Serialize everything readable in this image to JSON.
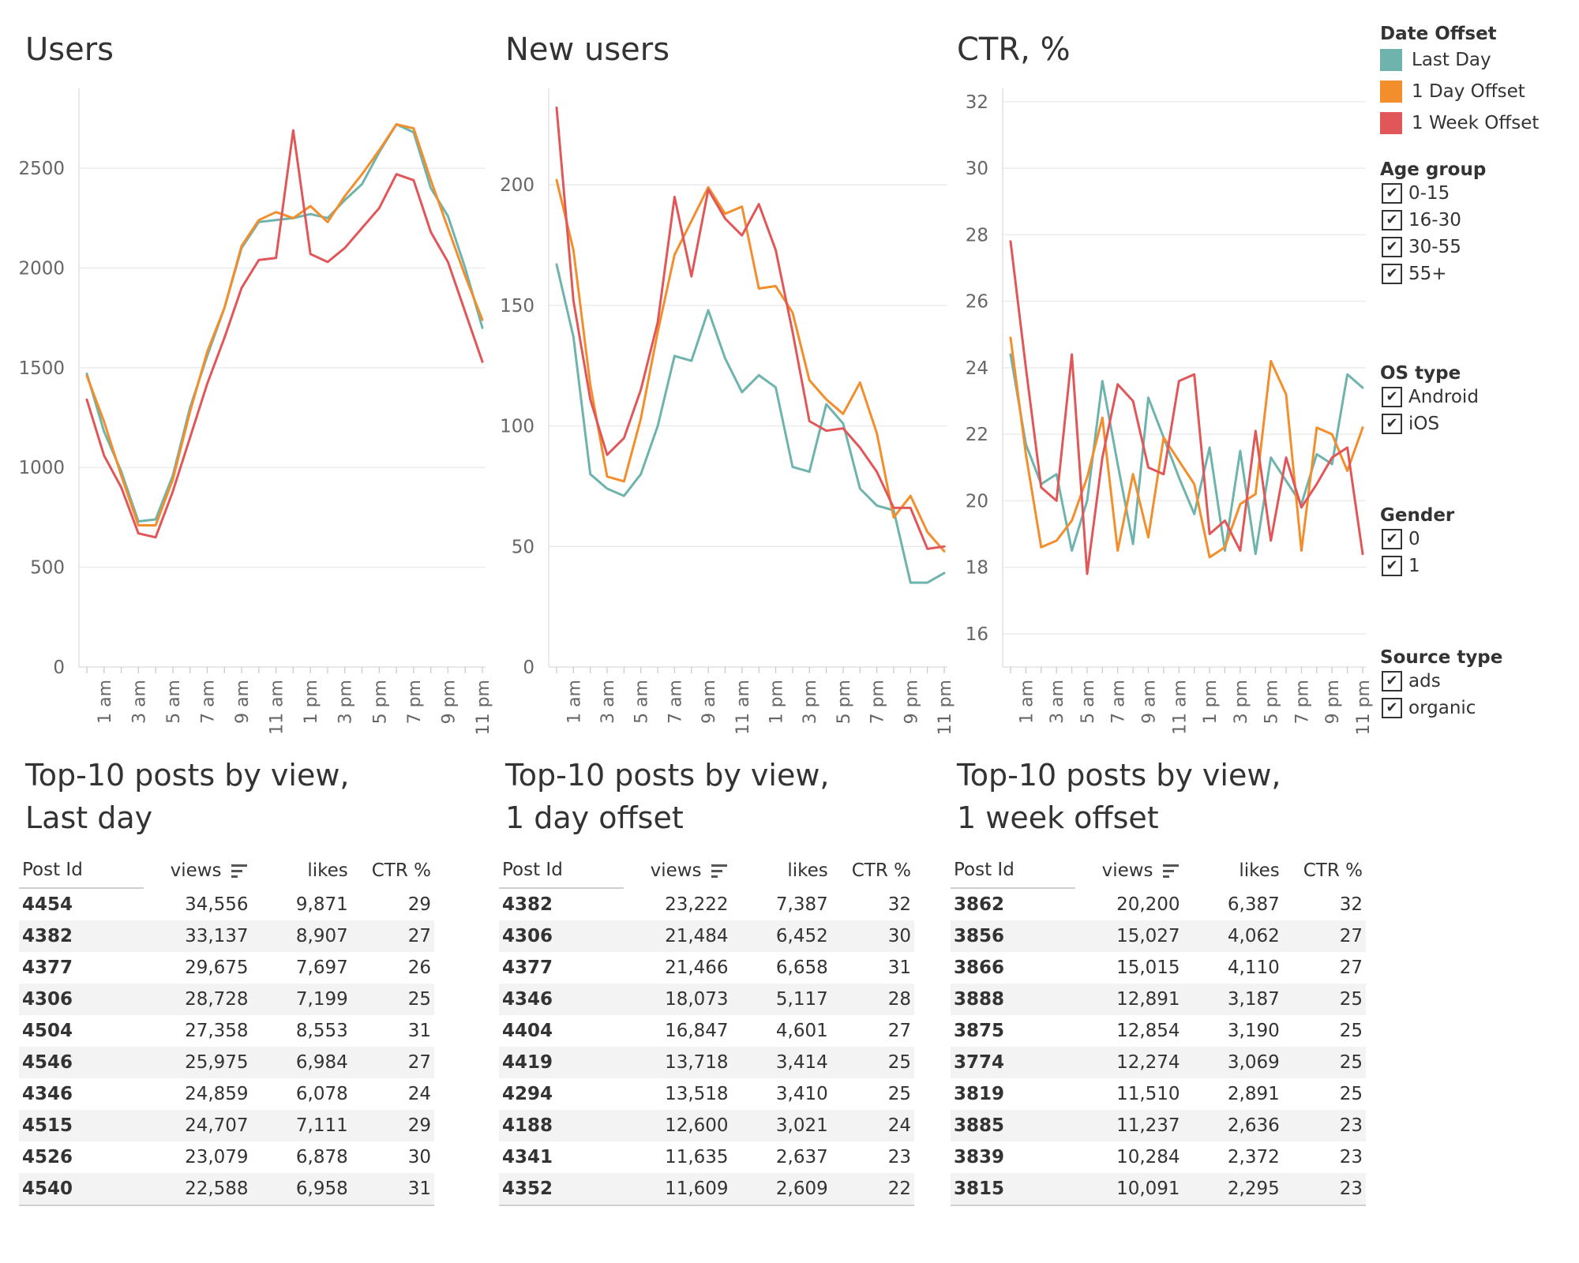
{
  "colors": {
    "last_day": "#6fb3ad",
    "one_day_offset": "#f28e2b",
    "one_week_offset": "#e15759"
  },
  "x_tick_labels": [
    "1 am",
    "3 am",
    "5 am",
    "7 am",
    "9 am",
    "11 am",
    "1 pm",
    "3 pm",
    "5 pm",
    "7 pm",
    "9 pm",
    "11 pm"
  ],
  "chart_data": [
    {
      "type": "line",
      "title": "Users",
      "xlabel": "",
      "ylabel": "",
      "x": [
        "12 am",
        "1 am",
        "2 am",
        "3 am",
        "4 am",
        "5 am",
        "6 am",
        "7 am",
        "8 am",
        "9 am",
        "10 am",
        "11 am",
        "12 pm",
        "1 pm",
        "2 pm",
        "3 pm",
        "4 pm",
        "5 pm",
        "6 pm",
        "7 pm",
        "8 pm",
        "9 pm",
        "10 pm",
        "11 pm"
      ],
      "x_tick_labels": [
        "1 am",
        "3 am",
        "5 am",
        "7 am",
        "9 am",
        "11 am",
        "1 pm",
        "3 pm",
        "5 pm",
        "7 pm",
        "9 pm",
        "11 pm"
      ],
      "ylim": [
        0,
        2900
      ],
      "y_ticks": [
        0,
        500,
        1000,
        1500,
        2000,
        2500
      ],
      "grid": true,
      "series": [
        {
          "name": "Last Day",
          "color": "#6fb3ad",
          "values": [
            1470,
            1180,
            980,
            730,
            740,
            960,
            1300,
            1560,
            1800,
            2100,
            2230,
            2240,
            2250,
            2270,
            2250,
            2340,
            2420,
            2580,
            2720,
            2680,
            2400,
            2260,
            2000,
            1700
          ]
        },
        {
          "name": "1 Day Offset",
          "color": "#f28e2b",
          "values": [
            1460,
            1230,
            960,
            710,
            710,
            940,
            1280,
            1580,
            1800,
            2110,
            2240,
            2280,
            2250,
            2310,
            2230,
            2360,
            2470,
            2590,
            2720,
            2700,
            2440,
            2200,
            1960,
            1740
          ]
        },
        {
          "name": "1 Week Offset",
          "color": "#e15759",
          "values": [
            1340,
            1060,
            900,
            670,
            650,
            880,
            1150,
            1420,
            1650,
            1900,
            2040,
            2050,
            2690,
            2070,
            2030,
            2100,
            2200,
            2300,
            2470,
            2440,
            2180,
            2030,
            1780,
            1530
          ]
        }
      ]
    },
    {
      "type": "line",
      "title": "New users",
      "xlabel": "",
      "ylabel": "",
      "x": [
        "12 am",
        "1 am",
        "2 am",
        "3 am",
        "4 am",
        "5 am",
        "6 am",
        "7 am",
        "8 am",
        "9 am",
        "10 am",
        "11 am",
        "12 pm",
        "1 pm",
        "2 pm",
        "3 pm",
        "4 pm",
        "5 pm",
        "6 pm",
        "7 pm",
        "8 pm",
        "9 pm",
        "10 pm",
        "11 pm"
      ],
      "x_tick_labels": [
        "1 am",
        "3 am",
        "5 am",
        "7 am",
        "9 am",
        "11 am",
        "1 pm",
        "3 pm",
        "5 pm",
        "7 pm",
        "9 pm",
        "11 pm"
      ],
      "ylim": [
        0,
        240
      ],
      "y_ticks": [
        0,
        50,
        100,
        150,
        200
      ],
      "grid": true,
      "series": [
        {
          "name": "Last Day",
          "color": "#6fb3ad",
          "values": [
            167,
            137,
            80,
            74,
            71,
            80,
            100,
            129,
            127,
            148,
            128,
            114,
            121,
            116,
            83,
            81,
            109,
            101,
            74,
            67,
            65,
            35,
            35,
            39
          ]
        },
        {
          "name": "1 Day Offset",
          "color": "#f28e2b",
          "values": [
            202,
            173,
            117,
            79,
            77,
            103,
            139,
            171,
            185,
            199,
            188,
            191,
            157,
            158,
            147,
            119,
            111,
            105,
            118,
            97,
            62,
            71,
            56,
            48
          ]
        },
        {
          "name": "1 Week Offset",
          "color": "#e15759",
          "values": [
            232,
            152,
            111,
            88,
            95,
            115,
            143,
            195,
            162,
            198,
            186,
            179,
            192,
            173,
            139,
            102,
            98,
            99,
            91,
            81,
            66,
            66,
            49,
            50
          ]
        }
      ]
    },
    {
      "type": "line",
      "title": "CTR, %",
      "xlabel": "",
      "ylabel": "",
      "x": [
        "12 am",
        "1 am",
        "2 am",
        "3 am",
        "4 am",
        "5 am",
        "6 am",
        "7 am",
        "8 am",
        "9 am",
        "10 am",
        "11 am",
        "12 pm",
        "1 pm",
        "2 pm",
        "3 pm",
        "4 pm",
        "5 pm",
        "6 pm",
        "7 pm",
        "8 pm",
        "9 pm",
        "10 pm",
        "11 pm"
      ],
      "x_tick_labels": [
        "1 am",
        "3 am",
        "5 am",
        "7 am",
        "9 am",
        "11 am",
        "1 pm",
        "3 pm",
        "5 pm",
        "7 pm",
        "9 pm",
        "11 pm"
      ],
      "ylim": [
        15,
        32.4
      ],
      "y_ticks": [
        16,
        18,
        20,
        22,
        24,
        26,
        28,
        30,
        32
      ],
      "grid": true,
      "series": [
        {
          "name": "Last Day",
          "color": "#6fb3ad",
          "values": [
            24.4,
            21.7,
            20.5,
            20.8,
            18.5,
            20.0,
            23.6,
            21.1,
            18.7,
            23.1,
            21.9,
            20.7,
            19.6,
            21.6,
            18.5,
            21.5,
            18.4,
            21.3,
            20.6,
            19.9,
            21.4,
            21.1,
            23.8,
            23.4
          ]
        },
        {
          "name": "1 Day Offset",
          "color": "#f28e2b",
          "values": [
            24.9,
            21.4,
            18.6,
            18.8,
            19.4,
            20.7,
            22.5,
            18.5,
            20.8,
            18.9,
            21.9,
            21.2,
            20.5,
            18.3,
            18.6,
            19.9,
            20.2,
            24.2,
            23.2,
            18.5,
            22.2,
            22.0,
            20.9,
            22.2
          ]
        },
        {
          "name": "1 Week Offset",
          "color": "#e15759",
          "values": [
            27.8,
            24.0,
            20.4,
            20.0,
            24.4,
            17.8,
            21.3,
            23.5,
            23.0,
            21.0,
            20.8,
            23.6,
            23.8,
            19.0,
            19.4,
            18.5,
            22.1,
            18.8,
            21.3,
            19.8,
            20.5,
            21.3,
            21.6,
            18.4
          ]
        }
      ]
    }
  ],
  "charts": {
    "users": {
      "title": "Users"
    },
    "new_users": {
      "title": "New users"
    },
    "ctr": {
      "title": "CTR, %"
    }
  },
  "legend": {
    "date_offset": {
      "heading": "Date Offset",
      "items": [
        "Last Day",
        "1 Day Offset",
        "1 Week Offset"
      ]
    },
    "age_group": {
      "heading": "Age group",
      "items": [
        "0-15",
        "16-30",
        "30-55",
        "55+"
      ]
    },
    "os_type": {
      "heading": "OS type",
      "items": [
        "Android",
        "iOS"
      ]
    },
    "gender": {
      "heading": "Gender",
      "items": [
        "0",
        "1"
      ]
    },
    "source_type": {
      "heading": "Source type",
      "items": [
        "ads",
        "organic"
      ]
    }
  },
  "tables": [
    {
      "title_line1": "Top-10 posts by view,",
      "title_line2": "Last day",
      "columns": [
        "Post Id",
        "views",
        "likes",
        "CTR %"
      ],
      "rows": [
        [
          "4454",
          "34,556",
          "9,871",
          "29"
        ],
        [
          "4382",
          "33,137",
          "8,907",
          "27"
        ],
        [
          "4377",
          "29,675",
          "7,697",
          "26"
        ],
        [
          "4306",
          "28,728",
          "7,199",
          "25"
        ],
        [
          "4504",
          "27,358",
          "8,553",
          "31"
        ],
        [
          "4546",
          "25,975",
          "6,984",
          "27"
        ],
        [
          "4346",
          "24,859",
          "6,078",
          "24"
        ],
        [
          "4515",
          "24,707",
          "7,111",
          "29"
        ],
        [
          "4526",
          "23,079",
          "6,878",
          "30"
        ],
        [
          "4540",
          "22,588",
          "6,958",
          "31"
        ]
      ]
    },
    {
      "title_line1": "Top-10 posts by view,",
      "title_line2": "1 day offset",
      "columns": [
        "Post Id",
        "views",
        "likes",
        "CTR %"
      ],
      "rows": [
        [
          "4382",
          "23,222",
          "7,387",
          "32"
        ],
        [
          "4306",
          "21,484",
          "6,452",
          "30"
        ],
        [
          "4377",
          "21,466",
          "6,658",
          "31"
        ],
        [
          "4346",
          "18,073",
          "5,117",
          "28"
        ],
        [
          "4404",
          "16,847",
          "4,601",
          "27"
        ],
        [
          "4419",
          "13,718",
          "3,414",
          "25"
        ],
        [
          "4294",
          "13,518",
          "3,410",
          "25"
        ],
        [
          "4188",
          "12,600",
          "3,021",
          "24"
        ],
        [
          "4341",
          "11,635",
          "2,637",
          "23"
        ],
        [
          "4352",
          "11,609",
          "2,609",
          "22"
        ]
      ]
    },
    {
      "title_line1": "Top-10 posts by view,",
      "title_line2": "1 week offset",
      "columns": [
        "Post Id",
        "views",
        "likes",
        "CTR %"
      ],
      "rows": [
        [
          "3862",
          "20,200",
          "6,387",
          "32"
        ],
        [
          "3856",
          "15,027",
          "4,062",
          "27"
        ],
        [
          "3866",
          "15,015",
          "4,110",
          "27"
        ],
        [
          "3888",
          "12,891",
          "3,187",
          "25"
        ],
        [
          "3875",
          "12,854",
          "3,190",
          "25"
        ],
        [
          "3774",
          "12,274",
          "3,069",
          "25"
        ],
        [
          "3819",
          "11,510",
          "2,891",
          "25"
        ],
        [
          "3885",
          "11,237",
          "2,636",
          "23"
        ],
        [
          "3839",
          "10,284",
          "2,372",
          "23"
        ],
        [
          "3815",
          "10,091",
          "2,295",
          "23"
        ]
      ]
    }
  ],
  "icons": {
    "sort": "sort-descending-icon",
    "check": "checkmark-icon"
  }
}
